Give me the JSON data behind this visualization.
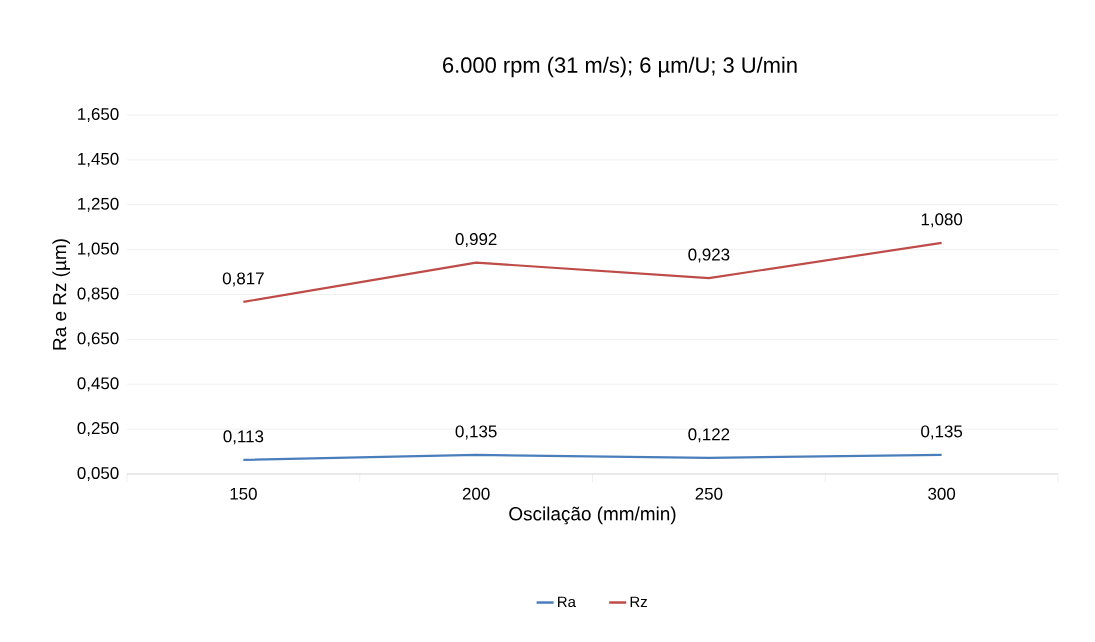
{
  "chart_data": {
    "type": "line",
    "title": "6.000 rpm (31 m/s); 6 µm/U; 3 U/min",
    "xlabel": "Oscilação (mm/min)",
    "ylabel": "Ra e Rz (µm)",
    "categories": [
      "150",
      "200",
      "250",
      "300"
    ],
    "series": [
      {
        "name": "Ra",
        "color": "#4a7ebb",
        "values": [
          0.113,
          0.135,
          0.122,
          0.135
        ],
        "value_labels": [
          "0,113",
          "0,135",
          "0,122",
          "0,135"
        ]
      },
      {
        "name": "Rz",
        "color": "#be4b48",
        "values": [
          0.817,
          0.992,
          0.923,
          1.08
        ],
        "value_labels": [
          "0,817",
          "0,992",
          "0,923",
          "1,080"
        ]
      }
    ],
    "ylim": [
      0.05,
      1.65
    ],
    "yticks": [
      {
        "value": 0.05,
        "label": "0,050"
      },
      {
        "value": 0.25,
        "label": "0,250"
      },
      {
        "value": 0.45,
        "label": "0,450"
      },
      {
        "value": 0.65,
        "label": "0,650"
      },
      {
        "value": 0.85,
        "label": "0,850"
      },
      {
        "value": 1.05,
        "label": "1,050"
      },
      {
        "value": 1.25,
        "label": "1,250"
      },
      {
        "value": 1.45,
        "label": "1,450"
      },
      {
        "value": 1.65,
        "label": "1,650"
      }
    ],
    "grid": "y",
    "legend": "bottom",
    "marker": "none"
  }
}
